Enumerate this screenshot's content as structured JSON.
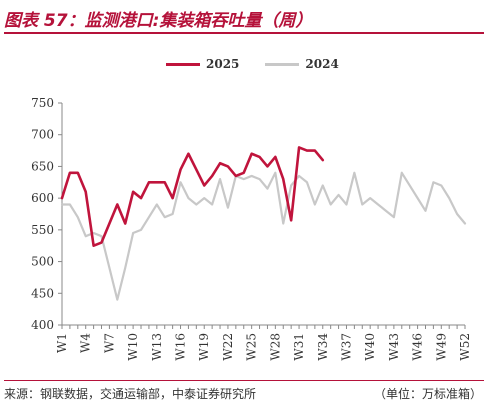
{
  "figure_title": "图表 57：监测港口:集装箱吞吐量（周）",
  "source": "来源：钢联数据，交通运输部，中泰证券研究所",
  "unit_note": "（单位：万标准箱）",
  "colors": {
    "s2025": "#c0143c",
    "s2024": "#c8c8c8",
    "accent": "#b5123a"
  },
  "chart_data": {
    "type": "line",
    "title": "",
    "xlabel": "",
    "ylabel": "",
    "ylim": [
      400,
      750
    ],
    "yticks": [
      400,
      450,
      500,
      550,
      600,
      650,
      700,
      750
    ],
    "xtick_labels": [
      "W1",
      "W4",
      "W7",
      "W10",
      "W13",
      "W16",
      "W19",
      "W22",
      "W25",
      "W28",
      "W31",
      "W34",
      "W37",
      "W40",
      "W43",
      "W46",
      "W49",
      "W52"
    ],
    "weeks": [
      1,
      2,
      3,
      4,
      5,
      6,
      7,
      8,
      9,
      10,
      11,
      12,
      13,
      14,
      15,
      16,
      17,
      18,
      19,
      20,
      21,
      22,
      23,
      24,
      25,
      26,
      27,
      28,
      29,
      30,
      31,
      32,
      33,
      34,
      35,
      36,
      37,
      38,
      39,
      40,
      41,
      42,
      43,
      44,
      45,
      46,
      47,
      48,
      49,
      50,
      51,
      52
    ],
    "legend_position": "top-center",
    "series": [
      {
        "name": "2025",
        "key": "s2025",
        "values": [
          600,
          640,
          640,
          610,
          525,
          530,
          560,
          590,
          560,
          610,
          600,
          625,
          625,
          625,
          600,
          645,
          670,
          645,
          620,
          635,
          655,
          650,
          635,
          640,
          670,
          665,
          650,
          665,
          630,
          565,
          680,
          675,
          675,
          660
        ]
      },
      {
        "name": "2024",
        "key": "s2024",
        "values": [
          590,
          590,
          570,
          540,
          545,
          540,
          490,
          440,
          490,
          545,
          550,
          570,
          590,
          570,
          575,
          625,
          600,
          590,
          600,
          590,
          630,
          585,
          635,
          630,
          635,
          630,
          615,
          640,
          560,
          620,
          635,
          625,
          590,
          620,
          590,
          605,
          590,
          640,
          590,
          600,
          590,
          580,
          570,
          640,
          620,
          600,
          580,
          625,
          620,
          600,
          575,
          560
        ]
      }
    ]
  }
}
